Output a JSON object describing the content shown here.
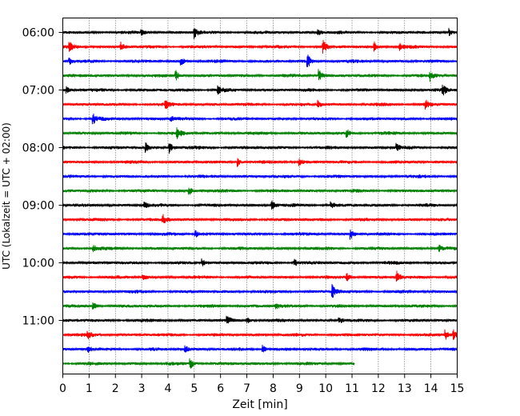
{
  "chart_data": {
    "type": "line",
    "title": "",
    "xlabel": "Zeit  [min]",
    "ylabel": "UTC (Lokalzeit = UTC + 02:00)",
    "xlim": [
      0,
      15
    ],
    "x_ticks": [
      "0",
      "1",
      "2",
      "3",
      "4",
      "5",
      "6",
      "7",
      "8",
      "9",
      "10",
      "11",
      "12",
      "13",
      "14",
      "15"
    ],
    "y_ticks": [
      "06:00",
      "07:00",
      "08:00",
      "09:00",
      "10:00",
      "11:00"
    ],
    "vertical_grid": true,
    "grid_style": "dotted",
    "trace_interval_minutes": 15,
    "trace_colors": [
      "#000000",
      "#ff0000",
      "#0000ff",
      "#008000"
    ],
    "traces": [
      {
        "start": "06:00",
        "color": "#000000",
        "end_min": 15
      },
      {
        "start": "06:15",
        "color": "#ff0000",
        "end_min": 15
      },
      {
        "start": "06:30",
        "color": "#0000ff",
        "end_min": 15
      },
      {
        "start": "06:45",
        "color": "#008000",
        "end_min": 15
      },
      {
        "start": "07:00",
        "color": "#000000",
        "end_min": 15
      },
      {
        "start": "07:15",
        "color": "#ff0000",
        "end_min": 15
      },
      {
        "start": "07:30",
        "color": "#0000ff",
        "end_min": 15
      },
      {
        "start": "07:45",
        "color": "#008000",
        "end_min": 15
      },
      {
        "start": "08:00",
        "color": "#000000",
        "end_min": 15
      },
      {
        "start": "08:15",
        "color": "#ff0000",
        "end_min": 15
      },
      {
        "start": "08:30",
        "color": "#0000ff",
        "end_min": 15
      },
      {
        "start": "08:45",
        "color": "#008000",
        "end_min": 15
      },
      {
        "start": "09:00",
        "color": "#000000",
        "end_min": 15
      },
      {
        "start": "09:15",
        "color": "#ff0000",
        "end_min": 15
      },
      {
        "start": "09:30",
        "color": "#0000ff",
        "end_min": 15
      },
      {
        "start": "09:45",
        "color": "#008000",
        "end_min": 15
      },
      {
        "start": "10:00",
        "color": "#000000",
        "end_min": 15
      },
      {
        "start": "10:15",
        "color": "#ff0000",
        "end_min": 15
      },
      {
        "start": "10:30",
        "color": "#0000ff",
        "end_min": 15
      },
      {
        "start": "10:45",
        "color": "#008000",
        "end_min": 15
      },
      {
        "start": "11:00",
        "color": "#000000",
        "end_min": 15
      },
      {
        "start": "11:15",
        "color": "#ff0000",
        "end_min": 15
      },
      {
        "start": "11:30",
        "color": "#0000ff",
        "end_min": 15
      },
      {
        "start": "11:45",
        "color": "#008000",
        "end_min": 11.1
      }
    ],
    "events": [
      {
        "trace": 0,
        "t": 2.99,
        "amp": 0.45
      },
      {
        "trace": 0,
        "t": 4.99,
        "amp": 0.9
      },
      {
        "trace": 0,
        "t": 9.7,
        "amp": 0.5
      },
      {
        "trace": 0,
        "t": 14.7,
        "amp": 0.55
      },
      {
        "trace": 1,
        "t": 0.25,
        "amp": 0.7
      },
      {
        "trace": 1,
        "t": 2.2,
        "amp": 0.6
      },
      {
        "trace": 1,
        "t": 9.9,
        "amp": 0.9
      },
      {
        "trace": 1,
        "t": 11.85,
        "amp": 0.65
      },
      {
        "trace": 1,
        "t": 12.8,
        "amp": 0.55
      },
      {
        "trace": 2,
        "t": 0.25,
        "amp": 0.5
      },
      {
        "trace": 2,
        "t": 4.5,
        "amp": 0.5
      },
      {
        "trace": 2,
        "t": 9.3,
        "amp": 1.0
      },
      {
        "trace": 3,
        "t": 4.3,
        "amp": 0.7
      },
      {
        "trace": 3,
        "t": 9.75,
        "amp": 0.8
      },
      {
        "trace": 3,
        "t": 13.95,
        "amp": 0.75
      },
      {
        "trace": 4,
        "t": 0.15,
        "amp": 0.5
      },
      {
        "trace": 4,
        "t": 5.9,
        "amp": 0.6
      },
      {
        "trace": 4,
        "t": 14.45,
        "amp": 0.7
      },
      {
        "trace": 5,
        "t": 3.9,
        "amp": 0.6
      },
      {
        "trace": 5,
        "t": 9.7,
        "amp": 0.5
      },
      {
        "trace": 5,
        "t": 13.8,
        "amp": 0.6
      },
      {
        "trace": 6,
        "t": 1.15,
        "amp": 0.75
      },
      {
        "trace": 6,
        "t": 4.1,
        "amp": 0.4
      },
      {
        "trace": 7,
        "t": 4.35,
        "amp": 0.9
      },
      {
        "trace": 7,
        "t": 10.8,
        "amp": 0.5
      },
      {
        "trace": 8,
        "t": 3.15,
        "amp": 0.6
      },
      {
        "trace": 8,
        "t": 4.05,
        "amp": 0.75
      },
      {
        "trace": 8,
        "t": 12.7,
        "amp": 0.5
      },
      {
        "trace": 9,
        "t": 6.65,
        "amp": 0.6
      },
      {
        "trace": 9,
        "t": 9.0,
        "amp": 0.5
      },
      {
        "trace": 11,
        "t": 4.8,
        "amp": 0.6
      },
      {
        "trace": 12,
        "t": 3.1,
        "amp": 0.5
      },
      {
        "trace": 12,
        "t": 7.95,
        "amp": 0.8
      },
      {
        "trace": 12,
        "t": 10.2,
        "amp": 0.5
      },
      {
        "trace": 13,
        "t": 3.8,
        "amp": 0.7
      },
      {
        "trace": 14,
        "t": 5.05,
        "amp": 0.5
      },
      {
        "trace": 14,
        "t": 10.95,
        "amp": 0.65
      },
      {
        "trace": 15,
        "t": 1.15,
        "amp": 0.5
      },
      {
        "trace": 15,
        "t": 14.3,
        "amp": 0.5
      },
      {
        "trace": 16,
        "t": 5.3,
        "amp": 0.5
      },
      {
        "trace": 16,
        "t": 8.8,
        "amp": 0.55
      },
      {
        "trace": 17,
        "t": 3.05,
        "amp": 0.5
      },
      {
        "trace": 17,
        "t": 10.8,
        "amp": 0.6
      },
      {
        "trace": 17,
        "t": 12.7,
        "amp": 0.75
      },
      {
        "trace": 18,
        "t": 10.25,
        "amp": 1.0
      },
      {
        "trace": 19,
        "t": 1.15,
        "amp": 0.6
      },
      {
        "trace": 19,
        "t": 8.1,
        "amp": 0.4
      },
      {
        "trace": 20,
        "t": 6.25,
        "amp": 0.6
      },
      {
        "trace": 20,
        "t": 7.0,
        "amp": 0.5
      },
      {
        "trace": 20,
        "t": 10.5,
        "amp": 0.5
      },
      {
        "trace": 21,
        "t": 0.95,
        "amp": 0.5
      },
      {
        "trace": 21,
        "t": 14.55,
        "amp": 0.75
      },
      {
        "trace": 21,
        "t": 14.85,
        "amp": 0.75
      },
      {
        "trace": 22,
        "t": 0.95,
        "amp": 0.45
      },
      {
        "trace": 22,
        "t": 4.65,
        "amp": 0.45
      },
      {
        "trace": 22,
        "t": 7.6,
        "amp": 0.55
      },
      {
        "trace": 23,
        "t": 4.85,
        "amp": 0.75
      }
    ]
  }
}
